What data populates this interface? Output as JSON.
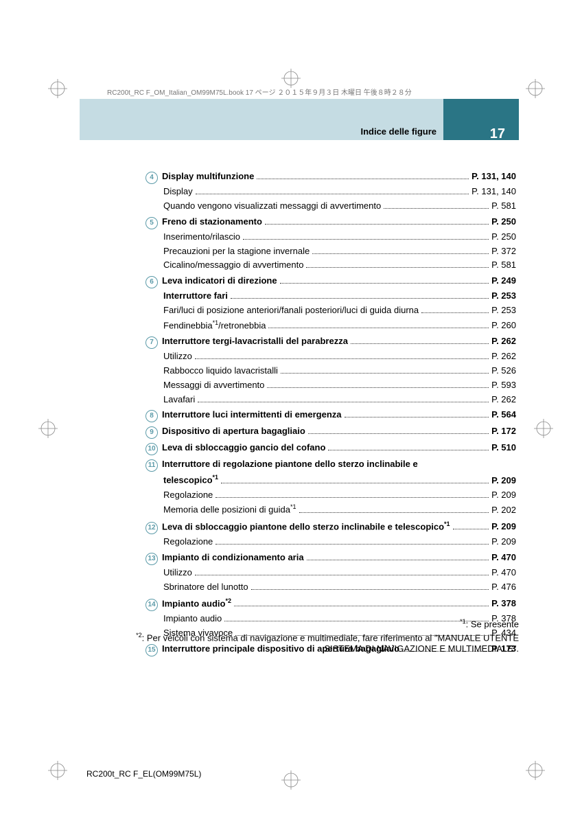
{
  "header_text": "RC200t_RC F_OM_Italian_OM99M75L.book  17 ページ  ２０１５年９月３日  木曜日  午後８時２８分",
  "section_title": "Indice delle figure",
  "page_number": "17",
  "footer_code": "RC200t_RC F_EL(OM99M75L)",
  "footnote1": "*1: Se presente",
  "footnote2": "*2: Per veicoli con sistema di navigazione e multimediale, fare riferimento al \"MANUALE UTENTE SISTEMA DI NAVIGAZIONE E MULTIMEDIALE\".",
  "groups": [
    {
      "num": "4",
      "items": [
        {
          "label": "Display multifunzione",
          "page": "P. 131, 140",
          "bold": true
        },
        {
          "label": "Display",
          "page": "P. 131, 140"
        },
        {
          "label": "Quando vengono visualizzati messaggi di avvertimento",
          "page": "P. 581"
        }
      ]
    },
    {
      "num": "5",
      "items": [
        {
          "label": "Freno di stazionamento",
          "page": "P. 250",
          "bold": true
        },
        {
          "label": "Inserimento/rilascio",
          "page": "P. 250"
        },
        {
          "label": "Precauzioni per la stagione invernale",
          "page": "P. 372"
        },
        {
          "label": "Cicalino/messaggio di avvertimento",
          "page": "P. 581"
        }
      ]
    },
    {
      "num": "6",
      "items": [
        {
          "label": "Leva indicatori di direzione",
          "page": "P. 249",
          "bold": true
        },
        {
          "label": "Interruttore fari",
          "page": "P. 253",
          "bold": true
        },
        {
          "label": "Fari/luci di posizione anteriori/fanali posteriori/luci di guida diurna",
          "page": "P. 253"
        },
        {
          "label": "Fendinebbia*1/retronebbia",
          "page": "P. 260",
          "sup": [
            10,
            2
          ]
        }
      ]
    },
    {
      "num": "7",
      "items": [
        {
          "label": "Interruttore tergi-lavacristalli del parabrezza",
          "page": "P. 262",
          "bold": true
        },
        {
          "label": "Utilizzo",
          "page": "P. 262"
        },
        {
          "label": "Rabbocco liquido lavacristalli",
          "page": "P. 526"
        },
        {
          "label": "Messaggi di avvertimento",
          "page": "P. 593"
        },
        {
          "label": "Lavafari",
          "page": "P. 262"
        }
      ]
    },
    {
      "num": "8",
      "items": [
        {
          "label": "Interruttore luci intermittenti di emergenza",
          "page": "P. 564",
          "bold": true
        }
      ]
    },
    {
      "num": "9",
      "items": [
        {
          "label": "Dispositivo di apertura bagagliaio",
          "page": "P. 172",
          "bold": true
        }
      ]
    },
    {
      "num": "10",
      "items": [
        {
          "label": "Leva di sbloccaggio gancio del cofano",
          "page": "P. 510",
          "bold": true
        }
      ]
    },
    {
      "num": "11",
      "items": [
        {
          "label": "Interruttore di regolazione piantone dello sterzo inclinabile e telescopico*1",
          "page": "P. 209",
          "bold": true,
          "wrap": true
        },
        {
          "label": "Regolazione",
          "page": "P. 209"
        },
        {
          "label": "Memoria delle posizioni di guida*1",
          "page": "P. 202"
        }
      ]
    },
    {
      "num": "12",
      "items": [
        {
          "label": "Leva di sbloccaggio piantone dello sterzo inclinabile e telescopico*1",
          "page": "P. 209",
          "bold": true
        },
        {
          "label": "Regolazione",
          "page": "P. 209"
        }
      ]
    },
    {
      "num": "13",
      "items": [
        {
          "label": "Impianto di condizionamento aria",
          "page": "P. 470",
          "bold": true
        },
        {
          "label": "Utilizzo",
          "page": "P. 470"
        },
        {
          "label": "Sbrinatore del lunotto",
          "page": "P. 476"
        }
      ]
    },
    {
      "num": "14",
      "items": [
        {
          "label": "Impianto audio*2",
          "page": "P. 378",
          "bold": true
        },
        {
          "label": "Impianto audio",
          "page": "P. 378"
        },
        {
          "label": "Sistema vivavoce",
          "page": "P. 434"
        }
      ]
    },
    {
      "num": "15",
      "items": [
        {
          "label": "Interruttore principale dispositivo di apertura bagagliaio",
          "page": "P. 173",
          "bold": true
        }
      ]
    }
  ]
}
